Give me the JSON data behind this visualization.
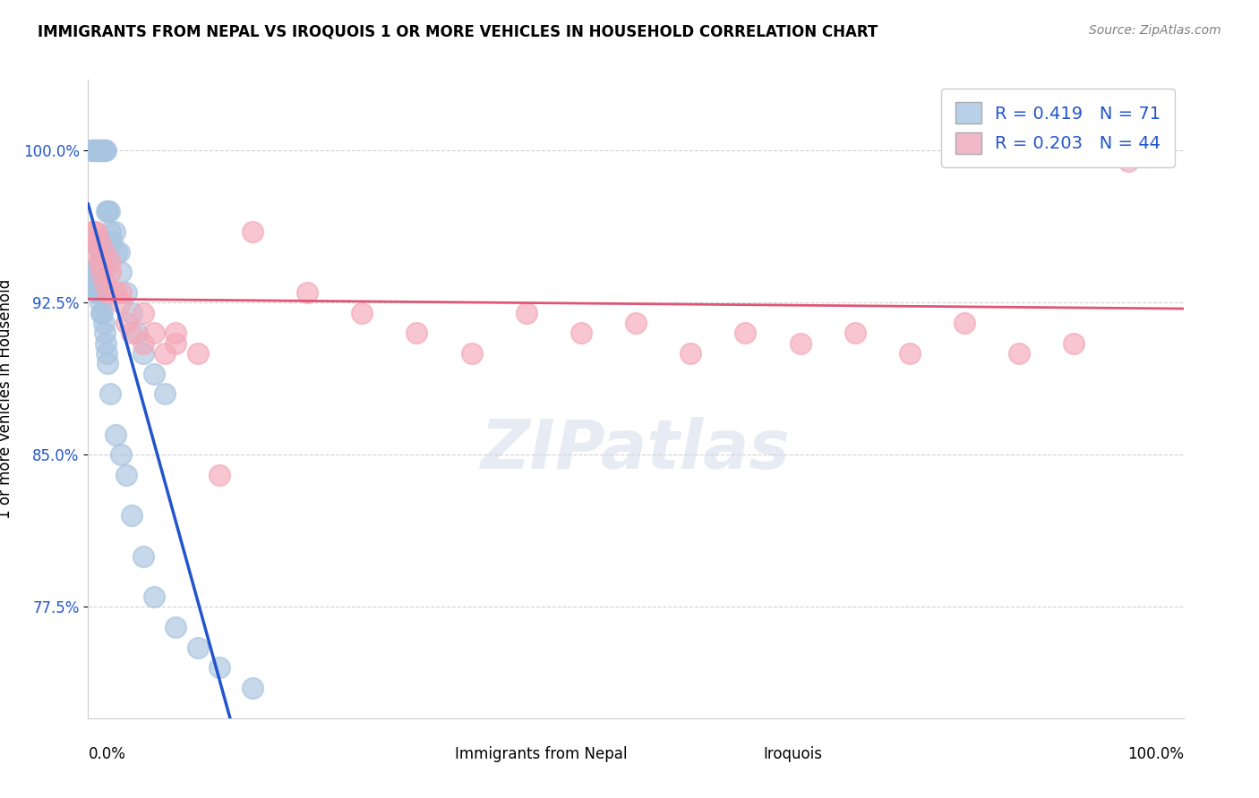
{
  "title": "IMMIGRANTS FROM NEPAL VS IROQUOIS 1 OR MORE VEHICLES IN HOUSEHOLD CORRELATION CHART",
  "source": "Source: ZipAtlas.com",
  "ylabel": "1 or more Vehicles in Household",
  "ytick_labels": [
    "77.5%",
    "85.0%",
    "92.5%",
    "100.0%"
  ],
  "ytick_values": [
    77.5,
    85.0,
    92.5,
    100.0
  ],
  "xlim": [
    0.0,
    100.0
  ],
  "ylim": [
    72.0,
    103.5
  ],
  "blue_R": 0.419,
  "blue_N": 71,
  "pink_R": 0.203,
  "pink_N": 44,
  "blue_color": "#a8c4e0",
  "pink_color": "#f4a8b8",
  "blue_line_color": "#2255cc",
  "pink_line_color": "#e05575",
  "legend_blue_color": "#b8d0e8",
  "legend_pink_color": "#f0b8c8",
  "blue_scatter_x": [
    0.3,
    0.4,
    0.5,
    0.6,
    0.7,
    0.8,
    0.9,
    1.0,
    1.1,
    1.2,
    1.3,
    1.4,
    1.5,
    1.6,
    1.7,
    1.8,
    1.9,
    2.0,
    2.2,
    2.4,
    2.6,
    2.8,
    3.0,
    3.5,
    4.0,
    4.5,
    5.0,
    6.0,
    7.0,
    0.2,
    0.3,
    0.4,
    0.5,
    0.6,
    0.7,
    0.8,
    0.9,
    1.0,
    1.1,
    1.2,
    1.3,
    1.4,
    1.5,
    0.2,
    0.3,
    0.4,
    0.5,
    0.6,
    0.7,
    0.8,
    0.9,
    1.0,
    1.1,
    1.2,
    1.3,
    1.4,
    1.5,
    1.6,
    1.7,
    1.8,
    2.0,
    2.5,
    3.0,
    3.5,
    4.0,
    5.0,
    6.0,
    8.0,
    10.0,
    12.0,
    15.0
  ],
  "blue_scatter_y": [
    100.0,
    100.0,
    100.0,
    100.0,
    100.0,
    100.0,
    100.0,
    100.0,
    100.0,
    100.0,
    100.0,
    100.0,
    100.0,
    100.0,
    97.0,
    97.0,
    97.0,
    96.0,
    95.5,
    96.0,
    95.0,
    95.0,
    94.0,
    93.0,
    92.0,
    91.0,
    90.0,
    89.0,
    88.0,
    95.5,
    95.5,
    95.5,
    95.5,
    95.5,
    95.5,
    95.5,
    95.5,
    95.5,
    95.0,
    95.0,
    95.0,
    94.5,
    94.5,
    94.0,
    94.0,
    94.0,
    94.0,
    93.5,
    93.5,
    93.0,
    93.0,
    93.0,
    92.5,
    92.0,
    92.0,
    91.5,
    91.0,
    90.5,
    90.0,
    89.5,
    88.0,
    86.0,
    85.0,
    84.0,
    82.0,
    80.0,
    78.0,
    76.5,
    75.5,
    74.5,
    73.5
  ],
  "pink_scatter_x": [
    0.5,
    0.7,
    1.0,
    1.2,
    1.5,
    1.8,
    2.0,
    2.5,
    3.0,
    3.5,
    4.0,
    5.0,
    6.0,
    7.0,
    8.0,
    10.0,
    12.0,
    15.0,
    20.0,
    25.0,
    30.0,
    35.0,
    40.0,
    45.0,
    50.0,
    55.0,
    60.0,
    65.0,
    70.0,
    75.0,
    80.0,
    85.0,
    90.0,
    95.0,
    0.3,
    0.5,
    0.7,
    1.0,
    1.5,
    2.0,
    3.0,
    5.0,
    8.0,
    98.0
  ],
  "pink_scatter_y": [
    95.5,
    95.0,
    94.5,
    94.0,
    93.5,
    93.0,
    94.0,
    93.0,
    92.5,
    91.5,
    91.0,
    90.5,
    91.0,
    90.0,
    90.5,
    90.0,
    84.0,
    96.0,
    93.0,
    92.0,
    91.0,
    90.0,
    92.0,
    91.0,
    91.5,
    90.0,
    91.0,
    90.5,
    91.0,
    90.0,
    91.5,
    90.0,
    90.5,
    99.5,
    96.0,
    96.0,
    96.0,
    95.5,
    95.0,
    94.5,
    93.0,
    92.0,
    91.0,
    99.8
  ],
  "watermark": "ZIPatlas",
  "background_color": "#ffffff",
  "grid_color": "#cccccc"
}
